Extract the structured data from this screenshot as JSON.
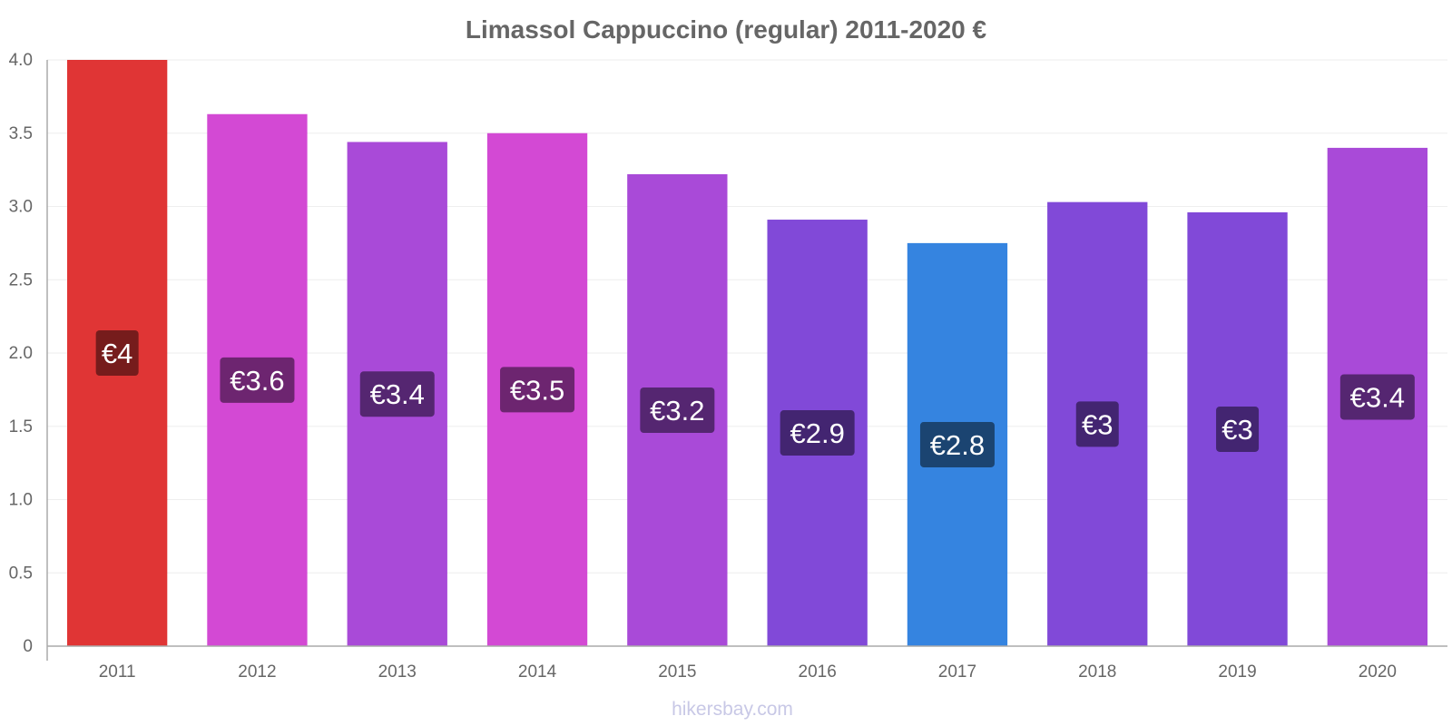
{
  "chart_data": {
    "type": "bar",
    "title": "Limassol Cappuccino (regular) 2011-2020 €",
    "xlabel": "",
    "ylabel": "",
    "ylim": [
      0,
      4.0
    ],
    "yticks": [
      0,
      0.5,
      1.0,
      1.5,
      2.0,
      2.5,
      3.0,
      3.5,
      4.0
    ],
    "ytick_labels": [
      "0",
      "0.5",
      "1.0",
      "1.5",
      "2.0",
      "2.5",
      "3.0",
      "3.5",
      "4.0"
    ],
    "grid": true,
    "categories": [
      "2011",
      "2012",
      "2013",
      "2014",
      "2015",
      "2016",
      "2017",
      "2018",
      "2019",
      "2020"
    ],
    "values": [
      4.0,
      3.63,
      3.44,
      3.5,
      3.22,
      2.91,
      2.75,
      3.03,
      2.96,
      3.4
    ],
    "labels": [
      "€4",
      "€3.6",
      "€3.4",
      "€3.5",
      "€3.2",
      "€2.9",
      "€2.8",
      "€3",
      "€3",
      "€3.4"
    ],
    "bar_colors": [
      "#e03535",
      "#d349d4",
      "#a94ad8",
      "#d349d4",
      "#a94ad8",
      "#8149d8",
      "#3584e0",
      "#8149d8",
      "#8149d8",
      "#a94ad8"
    ],
    "label_box_colors": [
      "#761c1c",
      "#6d2570",
      "#552671",
      "#6d2570",
      "#552671",
      "#432571",
      "#1b4471",
      "#432571",
      "#432571",
      "#552671"
    ]
  },
  "watermark": "hikersbay.com",
  "colors": {
    "axis": "#aaaaaa",
    "grid": "#eeeeee",
    "text": "#666666"
  }
}
